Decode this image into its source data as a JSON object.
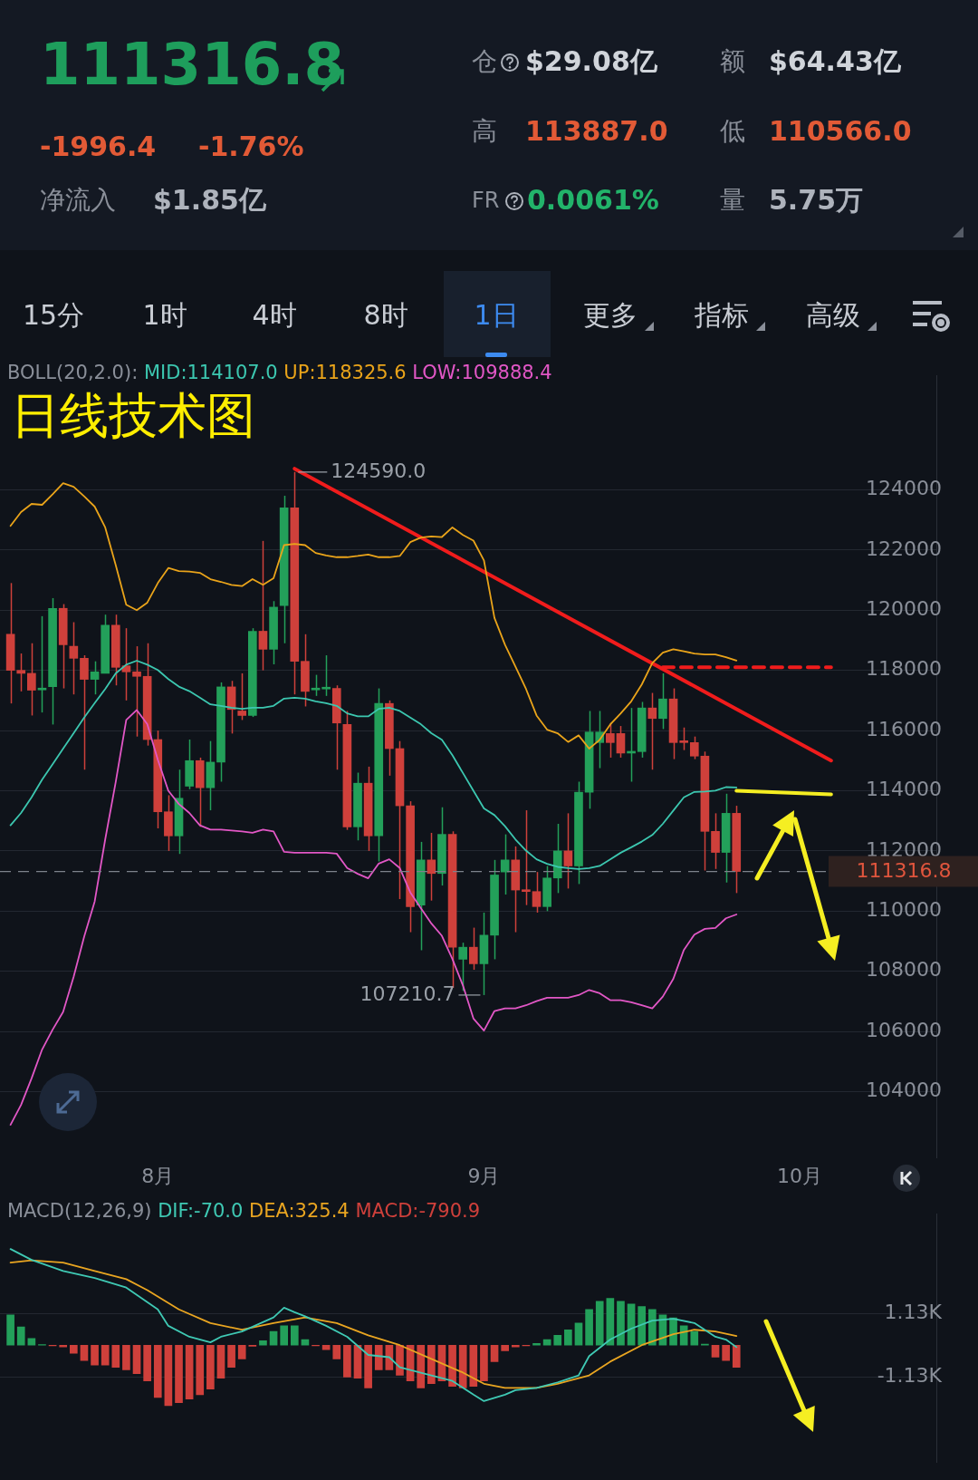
{
  "chart_data": [
    {
      "type": "other",
      "annotations": [
        "111316.8",
        "-1996.4",
        "-1.76%",
        "净流入",
        "$1.85亿",
        "仓",
        "$29.08亿",
        "额",
        "$64.43亿",
        "高",
        "113887.0",
        "低",
        "110566.0",
        "FR",
        "0.0061%",
        "量",
        "5.75万",
        "15分",
        "1时",
        "4时",
        "8时",
        "1日",
        "更多",
        "指标",
        "高级"
      ]
    },
    {
      "type": "candlestick",
      "title": "日线技术图",
      "legend_title": "BOLL(20,2.0):",
      "legend": "top",
      "grid": "y",
      "marker": "none",
      "x": [
        "--07-18",
        "--07-19",
        "--07-20",
        "--07-21",
        "--07-22",
        "--07-23",
        "--07-24",
        "--07-25",
        "--07-26",
        "--07-27",
        "--07-28",
        "--07-29",
        "--07-30",
        "--07-31",
        "--08-01",
        "--08-02",
        "--08-03",
        "--08-04",
        "--08-05",
        "--08-06",
        "--08-07",
        "--08-08",
        "--08-09",
        "--08-10",
        "--08-11",
        "--08-12",
        "--08-13",
        "--08-14",
        "--08-15",
        "--08-16",
        "--08-17",
        "--08-18",
        "--08-19",
        "--08-20",
        "--08-21",
        "--08-22",
        "--08-23",
        "--08-24",
        "--08-25",
        "--08-26",
        "--08-27",
        "--08-28",
        "--08-29",
        "--08-30",
        "--08-31",
        "--09-01",
        "--09-02",
        "--09-03",
        "--09-04",
        "--09-05",
        "--09-06",
        "--09-07",
        "--09-08",
        "--09-09",
        "--09-10",
        "--09-11",
        "--09-12",
        "--09-13",
        "--09-14",
        "--09-15",
        "--09-16",
        "--09-17",
        "--09-18",
        "--09-19",
        "--09-20",
        "--09-21",
        "--09-22",
        "--09-23",
        "--09-24",
        "--09-25"
      ],
      "ohlc": [
        [
          119200,
          120900,
          116900,
          118000
        ],
        [
          118000,
          118560,
          117300,
          117900
        ],
        [
          117900,
          118900,
          116500,
          117340
        ],
        [
          117350,
          119800,
          116600,
          117400
        ],
        [
          117460,
          120400,
          116200,
          120060
        ],
        [
          120060,
          120200,
          117400,
          118850
        ],
        [
          118800,
          119600,
          117200,
          118400
        ],
        [
          118400,
          118500,
          114700,
          117700
        ],
        [
          117700,
          118300,
          117200,
          117950
        ],
        [
          117900,
          119850,
          117900,
          119500
        ],
        [
          119500,
          119850,
          117500,
          118100
        ],
        [
          118150,
          119400,
          117000,
          117950
        ],
        [
          117950,
          118800,
          115800,
          117800
        ],
        [
          117800,
          118900,
          115500,
          115700
        ],
        [
          115700,
          116000,
          112750,
          113300
        ],
        [
          113300,
          113850,
          112000,
          112500
        ],
        [
          112500,
          114700,
          111900,
          113750
        ],
        [
          114150,
          115700,
          114050,
          115000
        ],
        [
          115000,
          115100,
          112800,
          114100
        ],
        [
          114100,
          115650,
          113350,
          114950
        ],
        [
          114950,
          117600,
          114300,
          117450
        ],
        [
          117450,
          117650,
          115900,
          116700
        ],
        [
          116650,
          117900,
          116350,
          116500
        ],
        [
          116500,
          119400,
          116450,
          119300
        ],
        [
          119300,
          122300,
          118000,
          118700
        ],
        [
          118700,
          120300,
          118200,
          120100
        ],
        [
          120150,
          123800,
          118900,
          123400
        ],
        [
          123400,
          124590,
          117200,
          118300
        ],
        [
          118300,
          119200,
          116800,
          117300
        ],
        [
          117350,
          117850,
          117150,
          117400
        ],
        [
          117380,
          118500,
          117150,
          117420
        ],
        [
          117400,
          117500,
          114700,
          116250
        ],
        [
          116200,
          116650,
          112700,
          112800
        ],
        [
          112800,
          114600,
          112350,
          114250
        ],
        [
          114250,
          114800,
          112000,
          112500
        ],
        [
          112500,
          117400,
          111650,
          116900
        ],
        [
          116900,
          117000,
          114500,
          115400
        ],
        [
          115400,
          115650,
          110400,
          113500
        ],
        [
          113500,
          113650,
          109300,
          110150
        ],
        [
          110200,
          112300,
          108700,
          111700
        ],
        [
          111700,
          112600,
          110350,
          111250
        ],
        [
          111250,
          113450,
          110850,
          112550
        ],
        [
          112550,
          112650,
          107450,
          108800
        ],
        [
          108400,
          108950,
          107350,
          108800
        ],
        [
          108800,
          109450,
          108050,
          108250
        ],
        [
          108250,
          109950,
          107210.7,
          109200
        ],
        [
          109200,
          111700,
          108400,
          111200
        ],
        [
          111300,
          112550,
          110550,
          111700
        ],
        [
          111700,
          112150,
          109300,
          110700
        ],
        [
          110700,
          113350,
          110200,
          110650
        ],
        [
          110650,
          111300,
          109950,
          110150
        ],
        [
          110150,
          111500,
          110000,
          111100
        ],
        [
          111100,
          112900,
          110600,
          112000
        ],
        [
          112000,
          113250,
          110750,
          111500
        ],
        [
          111500,
          114300,
          110900,
          113950
        ],
        [
          113950,
          116650,
          113400,
          115950
        ],
        [
          115600,
          116650,
          114750,
          115950
        ],
        [
          115900,
          116250,
          115100,
          115600
        ],
        [
          115900,
          116150,
          115100,
          115250
        ],
        [
          115250,
          116750,
          114300,
          115300
        ],
        [
          115300,
          116950,
          115100,
          116750
        ],
        [
          116750,
          117250,
          114700,
          116400
        ],
        [
          116400,
          117900,
          116050,
          117050
        ],
        [
          117050,
          117400,
          115050,
          115600
        ],
        [
          115650,
          116100,
          115350,
          115600
        ],
        [
          115600,
          115800,
          115050,
          115150
        ],
        [
          115150,
          115300,
          111350,
          112650
        ],
        [
          112650,
          113250,
          111400,
          111950
        ],
        [
          111950,
          113900,
          110950,
          113250
        ],
        [
          113250,
          113500,
          110600,
          111316.8
        ]
      ],
      "series": [
        {
          "name": "MID:114107.0",
          "type": "line",
          "color": "#3cc7b0",
          "values": [
            112850,
            113260,
            113780,
            114370,
            114880,
            115400,
            115910,
            116430,
            116910,
            117380,
            117900,
            118190,
            118320,
            118190,
            118010,
            117710,
            117460,
            117310,
            117090,
            116870,
            116820,
            116760,
            116720,
            116760,
            116760,
            116820,
            117060,
            117090,
            117060,
            116970,
            116910,
            116820,
            116570,
            116470,
            116470,
            116720,
            116760,
            116650,
            116430,
            116210,
            115910,
            115690,
            115180,
            114590,
            114000,
            113410,
            113190,
            112820,
            112380,
            112010,
            111720,
            111570,
            111470,
            111430,
            111400,
            111430,
            111500,
            111720,
            111940,
            112120,
            112310,
            112530,
            112900,
            113340,
            113780,
            113960,
            113970,
            114000,
            114120,
            114107
          ]
        },
        {
          "name": "UP:118325.6",
          "type": "line",
          "color": "#eaa41a",
          "values": [
            122800,
            123260,
            123530,
            123500,
            123850,
            124220,
            124100,
            123780,
            123440,
            122750,
            121500,
            120180,
            120000,
            120250,
            120900,
            121400,
            121300,
            121280,
            121240,
            121030,
            120940,
            120840,
            120800,
            121030,
            120840,
            121060,
            122160,
            122200,
            122160,
            121900,
            121820,
            121760,
            121760,
            121800,
            121850,
            121760,
            121760,
            121800,
            122260,
            122410,
            122450,
            122430,
            122750,
            122500,
            122310,
            121650,
            119740,
            118850,
            118120,
            117380,
            116500,
            116030,
            115910,
            115620,
            115840,
            115400,
            115690,
            116200,
            116570,
            116970,
            117530,
            118240,
            118590,
            118700,
            118630,
            118560,
            118530,
            118530,
            118440,
            118325.6
          ]
        },
        {
          "name": "LOW:109888.4",
          "type": "line",
          "color": "#e257c6",
          "values": [
            102900,
            103560,
            104440,
            105400,
            106060,
            106650,
            107820,
            109150,
            110320,
            112380,
            114290,
            116350,
            116680,
            116210,
            115030,
            114000,
            113560,
            113260,
            112850,
            112710,
            112710,
            112680,
            112650,
            112600,
            112710,
            112650,
            111970,
            111940,
            111940,
            111940,
            111940,
            111910,
            111430,
            111240,
            111090,
            111580,
            111720,
            111430,
            110620,
            110100,
            109590,
            109180,
            108410,
            107530,
            106430,
            106030,
            106680,
            106770,
            106770,
            106870,
            107010,
            107120,
            107120,
            107120,
            107210,
            107380,
            107270,
            107040,
            107040,
            106970,
            106870,
            106770,
            107160,
            107750,
            108710,
            109220,
            109410,
            109440,
            109760,
            109888.4
          ]
        },
        {
          "type": "line",
          "color": "#f01c1c",
          "x": [
            "--08-14",
            "--10-04"
          ],
          "values": [
            124700,
            115000
          ]
        },
        {
          "type": "line",
          "color": "#f01c1c",
          "line_style": "dashed",
          "x": [
            "--09-18",
            "--10-04"
          ],
          "values": [
            118100,
            118100
          ]
        },
        {
          "type": "line",
          "color": "#f5ee22",
          "x": [
            "--09-25",
            "--10-04"
          ],
          "values": [
            114000,
            113880
          ]
        }
      ],
      "xlim": [
        "--07-17",
        "--10-14"
      ],
      "xticks": [
        {
          "value": "--08-01",
          "label": "8月"
        },
        {
          "value": "--09-01",
          "label": "9月"
        },
        {
          "value": "--10-01",
          "label": "10月"
        }
      ],
      "ylim": [
        101800,
        127800
      ],
      "yticks": [
        104000,
        106000,
        108000,
        110000,
        112000,
        114000,
        116000,
        118000,
        120000,
        122000,
        124000
      ],
      "ref_lines": [
        {
          "axis": "y",
          "value": 111316.8,
          "label": "111316.8",
          "color": "#7d828b",
          "line_style": "dashed"
        }
      ],
      "annotations": [
        {
          "text": "124590.0",
          "x": "--08-14",
          "y": 124590
        },
        {
          "text": "107210.7",
          "x": "--09-01",
          "y": 107210.7
        }
      ]
    },
    {
      "type": "bar",
      "title": "MACD(12,26,9)",
      "legend": "top left",
      "grid": "y",
      "tick_labels": "y",
      "marker": "none",
      "x": [
        "--07-18",
        "--07-19",
        "--07-20",
        "--07-21",
        "--07-22",
        "--07-23",
        "--07-24",
        "--07-25",
        "--07-26",
        "--07-27",
        "--07-28",
        "--07-29",
        "--07-30",
        "--07-31",
        "--08-01",
        "--08-02",
        "--08-03",
        "--08-04",
        "--08-05",
        "--08-06",
        "--08-07",
        "--08-08",
        "--08-09",
        "--08-10",
        "--08-11",
        "--08-12",
        "--08-13",
        "--08-14",
        "--08-15",
        "--08-16",
        "--08-17",
        "--08-18",
        "--08-19",
        "--08-20",
        "--08-21",
        "--08-22",
        "--08-23",
        "--08-24",
        "--08-25",
        "--08-26",
        "--08-27",
        "--08-28",
        "--08-29",
        "--08-30",
        "--08-31",
        "--09-01",
        "--09-02",
        "--09-03",
        "--09-04",
        "--09-05",
        "--09-06",
        "--09-07",
        "--09-08",
        "--09-09",
        "--09-10",
        "--09-11",
        "--09-12",
        "--09-13",
        "--09-14",
        "--09-15",
        "--09-16",
        "--09-17",
        "--09-18",
        "--09-19",
        "--09-20",
        "--09-21",
        "--09-22",
        "--09-23",
        "--09-24",
        "--09-25"
      ],
      "series": [
        {
          "name": "DIF:-70.0",
          "type": "line",
          "color": "#3fc9b4",
          "x": [
            "--07-18",
            "--07-20",
            "--07-23",
            "--07-26",
            "--07-29",
            "--08-01",
            "--08-02",
            "--08-04",
            "--08-06",
            "--08-07",
            "--08-09",
            "--08-12",
            "--08-13",
            "--08-14",
            "--08-15",
            "--08-17",
            "--08-19",
            "--08-21",
            "--08-23",
            "--08-24",
            "--08-27",
            "--08-29",
            "--08-31",
            "--09-01",
            "--09-03",
            "--09-04",
            "--09-06",
            "--09-08",
            "--09-10",
            "--09-11",
            "--09-13",
            "--09-15",
            "--09-17",
            "--09-19",
            "--09-21",
            "--09-23",
            "--09-24",
            "--09-25"
          ],
          "values": [
            3440,
            3050,
            2650,
            2400,
            2060,
            1280,
            690,
            300,
            100,
            300,
            490,
            990,
            1340,
            1180,
            1030,
            690,
            300,
            -350,
            -430,
            -790,
            -1080,
            -1280,
            -1770,
            -2000,
            -1770,
            -1610,
            -1530,
            -1330,
            -1080,
            -390,
            200,
            590,
            880,
            940,
            790,
            300,
            200,
            -70
          ]
        },
        {
          "name": "DEA:325.4",
          "type": "line",
          "color": "#e9a521",
          "x": [
            "--07-18",
            "--07-20",
            "--07-23",
            "--07-26",
            "--07-29",
            "--07-31",
            "--08-03",
            "--08-06",
            "--08-09",
            "--08-12",
            "--08-15",
            "--08-18",
            "--08-21",
            "--08-24",
            "--08-27",
            "--08-30",
            "--09-01",
            "--09-03",
            "--09-06",
            "--09-08",
            "--09-11",
            "--09-13",
            "--09-16",
            "--09-19",
            "--09-21",
            "--09-23",
            "--09-25"
          ],
          "values": [
            2950,
            3030,
            2950,
            2650,
            2360,
            1970,
            1280,
            790,
            550,
            790,
            990,
            790,
            350,
            0,
            -490,
            -980,
            -1380,
            -1530,
            -1530,
            -1380,
            -1080,
            -590,
            0,
            390,
            550,
            490,
            325.4
          ]
        },
        {
          "name": "MACD:-790.9",
          "type": "bar",
          "colors": [
            "#23a05a",
            "#23a05a",
            "#23a05a",
            "#23a05a",
            "#cf403b",
            "#cf403b",
            "#cf403b",
            "#cf403b",
            "#cf403b",
            "#cf403b",
            "#cf403b",
            "#cf403b",
            "#cf403b",
            "#cf403b",
            "#cf403b",
            "#cf403b",
            "#cf403b",
            "#cf403b",
            "#cf403b",
            "#cf403b",
            "#cf403b",
            "#cf403b",
            "#cf403b",
            "#cf403b",
            "#23a05a",
            "#23a05a",
            "#23a05a",
            "#23a05a",
            "#23a05a",
            "#cf403b",
            "#cf403b",
            "#cf403b",
            "#cf403b",
            "#cf403b",
            "#cf403b",
            "#cf403b",
            "#cf403b",
            "#cf403b",
            "#cf403b",
            "#cf403b",
            "#cf403b",
            "#cf403b",
            "#cf403b",
            "#cf403b",
            "#cf403b",
            "#cf403b",
            "#cf403b",
            "#cf403b",
            "#cf403b",
            "#cf403b",
            "#23a05a",
            "#23a05a",
            "#23a05a",
            "#23a05a",
            "#23a05a",
            "#23a05a",
            "#23a05a",
            "#23a05a",
            "#23a05a",
            "#23a05a",
            "#23a05a",
            "#23a05a",
            "#23a05a",
            "#23a05a",
            "#23a05a",
            "#23a05a",
            "#23a05a",
            "#cf403b",
            "#cf403b",
            "#cf403b"
          ],
          "values": [
            1080,
            650,
            240,
            20,
            -20,
            -60,
            -290,
            -550,
            -710,
            -710,
            -790,
            -880,
            -1020,
            -1280,
            -1870,
            -2160,
            -2060,
            -1930,
            -1770,
            -1570,
            -1180,
            -790,
            -490,
            -40,
            160,
            490,
            690,
            690,
            200,
            -20,
            -160,
            -490,
            -1140,
            -1180,
            -1530,
            -880,
            -880,
            -1080,
            -1280,
            -1530,
            -1380,
            -1280,
            -1470,
            -1530,
            -1470,
            -1280,
            -590,
            -200,
            -60,
            -20,
            60,
            200,
            350,
            550,
            790,
            1280,
            1570,
            1670,
            1570,
            1470,
            1380,
            1280,
            1080,
            980,
            690,
            490,
            40,
            -430,
            -550,
            -790.9
          ]
        }
      ],
      "xlim": [
        "--07-17",
        "--10-14"
      ],
      "ylim": [
        -4200,
        4700
      ],
      "yticks": [
        {
          "value": 1130,
          "label": "1.13K"
        },
        {
          "value": -1130,
          "label": "-1.13K"
        }
      ]
    }
  ]
}
